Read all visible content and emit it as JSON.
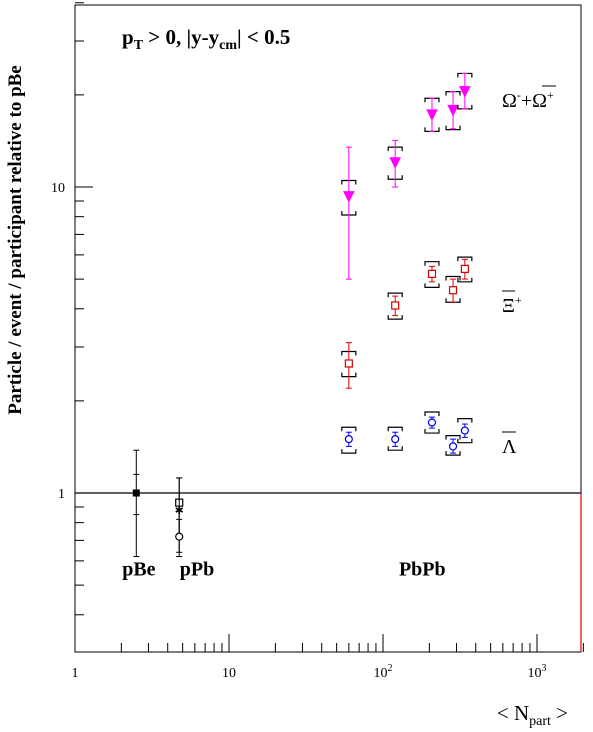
{
  "chart_data": {
    "type": "scatter",
    "xscale": "log",
    "yscale": "log",
    "xlim": [
      1,
      2000
    ],
    "ylim": [
      0.35,
      50
    ],
    "ylabel": "Particle / event / participant relative to pBe",
    "xlabel_main": "< N",
    "xlabel_sub": "part",
    "xlabel_end": " >",
    "cut_label": "p_T > 0,   |y-y_cm| < 0.5",
    "cut_parts": {
      "p": "p",
      "T": "T",
      "gt0": " > 0,   |y-y",
      "cm": "cm",
      "end": "| < 0.5"
    },
    "x_ticks": [
      {
        "value": 1,
        "label": "1"
      },
      {
        "value": 10,
        "label": "10"
      },
      {
        "value": 100,
        "label": "10",
        "sup": "2"
      },
      {
        "value": 1000,
        "label": "10",
        "sup": "3"
      }
    ],
    "y_ticks": [
      {
        "value": 1,
        "label": "1"
      },
      {
        "value": 10,
        "label": "10"
      }
    ],
    "reference_line": 1,
    "system_labels": [
      {
        "text": "pBe",
        "x": 2.6,
        "y": 0.57
      },
      {
        "text": "pPb",
        "x": 6.2,
        "y": 0.57
      },
      {
        "text": "PbPb",
        "x": 180,
        "y": 0.57
      }
    ],
    "series": [
      {
        "name": "Ω⁻+Ω̄⁺",
        "label_parts": {
          "a": "Ω",
          "a_sup": "-",
          "plus": "+",
          "b": "Ω",
          "b_sup": "+"
        },
        "color": "#ff00ff",
        "marker": "triangle-down-filled",
        "points": [
          {
            "x": 60,
            "y": 9.3,
            "ylo": 5.0,
            "yhi": 13.5,
            "syslo": 8.1,
            "syshi": 10.5
          },
          {
            "x": 120,
            "y": 12.0,
            "ylo": 10.0,
            "yhi": 14.2,
            "syslo": 10.6,
            "syshi": 13.5
          },
          {
            "x": 208,
            "y": 17.2,
            "ylo": 15.2,
            "yhi": 19.5,
            "syslo": 15.2,
            "syshi": 19.5
          },
          {
            "x": 285,
            "y": 17.8,
            "ylo": 15.5,
            "yhi": 20.5,
            "syslo": 15.4,
            "syshi": 20.5
          },
          {
            "x": 340,
            "y": 20.5,
            "ylo": 18.0,
            "yhi": 23.5,
            "syslo": 18.0,
            "syshi": 23.5
          }
        ]
      },
      {
        "name": "Ξ̄⁺",
        "label_parts": {
          "a": "Ξ",
          "a_sup": "+"
        },
        "color": "#dd0000",
        "marker": "square-open",
        "points": [
          {
            "x": 60,
            "y": 2.65,
            "ylo": 2.2,
            "yhi": 3.1,
            "syslo": 2.4,
            "syshi": 2.9
          },
          {
            "x": 120,
            "y": 4.1,
            "ylo": 3.8,
            "yhi": 4.4,
            "syslo": 3.7,
            "syshi": 4.5
          },
          {
            "x": 208,
            "y": 5.2,
            "ylo": 4.9,
            "yhi": 5.5,
            "syslo": 4.7,
            "syshi": 5.7
          },
          {
            "x": 285,
            "y": 4.6,
            "ylo": 4.2,
            "yhi": 5.0,
            "syslo": 4.2,
            "syshi": 5.1
          },
          {
            "x": 340,
            "y": 5.4,
            "ylo": 5.0,
            "yhi": 5.8,
            "syslo": 4.9,
            "syshi": 5.9
          }
        ]
      },
      {
        "name": "Λ̄",
        "label_parts": {
          "a": "Λ"
        },
        "color": "#0000ee",
        "marker": "circle-open",
        "points": [
          {
            "x": 60,
            "y": 1.5,
            "ylo": 1.42,
            "yhi": 1.58,
            "syslo": 1.35,
            "syshi": 1.64
          },
          {
            "x": 120,
            "y": 1.5,
            "ylo": 1.42,
            "yhi": 1.58,
            "syslo": 1.38,
            "syshi": 1.64
          },
          {
            "x": 208,
            "y": 1.7,
            "ylo": 1.63,
            "yhi": 1.77,
            "syslo": 1.57,
            "syshi": 1.84
          },
          {
            "x": 285,
            "y": 1.42,
            "ylo": 1.35,
            "yhi": 1.5,
            "syslo": 1.33,
            "syshi": 1.54
          },
          {
            "x": 340,
            "y": 1.6,
            "ylo": 1.52,
            "yhi": 1.68,
            "syslo": 1.46,
            "syshi": 1.75
          }
        ]
      },
      {
        "name": "pBe",
        "color": "#000000",
        "marker": "square-filled",
        "points": [
          {
            "x": 2.5,
            "y": 1.0,
            "ylo": 0.62,
            "yhi": 1.38,
            "inner_lo": 0.85,
            "inner_hi": 1.15
          }
        ]
      },
      {
        "name": "pPb",
        "color": "#000000",
        "marker": "mixed",
        "points": [
          {
            "x": 4.75,
            "y": 0.93,
            "ylo": 0.72,
            "yhi": 1.12,
            "marker": "square-open"
          },
          {
            "x": 4.75,
            "y": 0.88,
            "ylo": 0.64,
            "yhi": 1.12,
            "marker": "star"
          },
          {
            "x": 4.75,
            "y": 0.72,
            "ylo": 0.62,
            "yhi": 0.82,
            "marker": "circle-open"
          }
        ]
      }
    ]
  }
}
